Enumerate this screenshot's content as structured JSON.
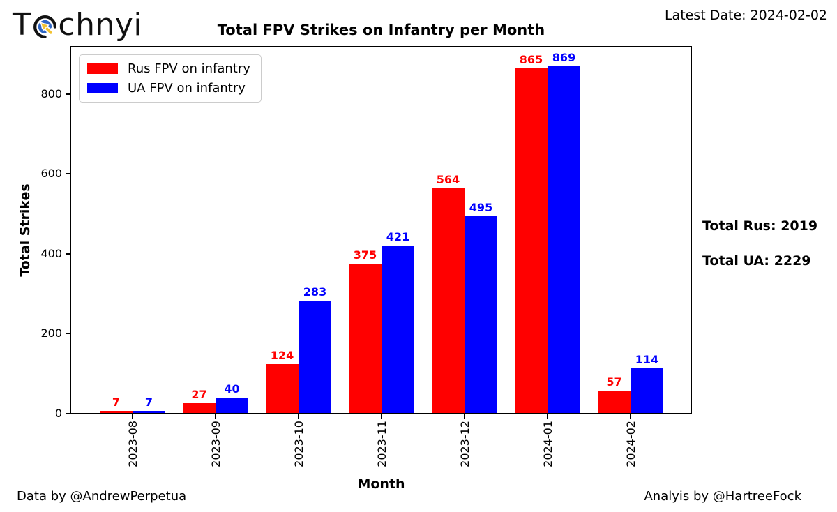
{
  "logo": {
    "prefix": "T",
    "suffix": "chnyi"
  },
  "header": {
    "latest_date": "Latest Date: 2024-02-02"
  },
  "chart_data": {
    "type": "bar",
    "title": "Total FPV Strikes on Infantry per Month",
    "xlabel": "Month",
    "ylabel": "Total Strikes",
    "categories": [
      "2023-08",
      "2023-09",
      "2023-10",
      "2023-11",
      "2023-12",
      "2024-01",
      "2024-02"
    ],
    "series": [
      {
        "name": "Rus FPV on infantry",
        "color": "#ff0000",
        "values": [
          7,
          27,
          124,
          375,
          564,
          865,
          57
        ],
        "total": 2019
      },
      {
        "name": "UA FPV on infantry",
        "color": "#0000ff",
        "values": [
          7,
          40,
          283,
          421,
          495,
          869,
          114
        ],
        "total": 2229
      }
    ],
    "yticks": [
      0,
      200,
      400,
      600,
      800
    ],
    "ylim": [
      0,
      920
    ],
    "grid": false,
    "legend_position": "upper-left",
    "bar_value_labels": true
  },
  "annotations": {
    "total_rus": "Total Rus: 2019",
    "total_ua": "Total UA: 2229"
  },
  "footer": {
    "credit_left": "Data by @AndrewPerpetua",
    "credit_right": "Analyis by @HartreeFock"
  }
}
